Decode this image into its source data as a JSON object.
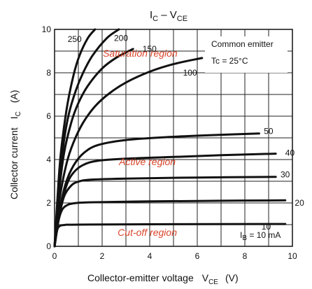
{
  "chart_data": {
    "type": "line",
    "title": "IC – VCE",
    "title_parts": {
      "main": "I",
      "sub1": "C",
      "dash": " – V",
      "sub2": "CE"
    },
    "xlabel": "Collector-emitter voltage",
    "xlabel_symbol": {
      "main": "V",
      "sub": "CE"
    },
    "xlabel_unit": "(V)",
    "ylabel": "Collector current",
    "ylabel_symbol": {
      "main": "I",
      "sub": "C"
    },
    "ylabel_unit": "(A)",
    "xlim": [
      0,
      10
    ],
    "ylim": [
      0,
      10
    ],
    "xticks": [
      0,
      2,
      4,
      6,
      8,
      10
    ],
    "yticks": [
      0,
      2,
      4,
      6,
      8,
      10
    ],
    "grid": true,
    "annotations": {
      "condition_line1": "Common emitter",
      "condition_line2": "Tc = 25°C",
      "ib_prefix": "I",
      "ib_sub": "B",
      "ib_suffix": " = 10 mA"
    },
    "regions": [
      {
        "label": "Saturation region",
        "x": 3.6,
        "y": 8.9
      },
      {
        "label": "Active region",
        "x": 3.9,
        "y": 3.9
      },
      {
        "label": "Cut-off region",
        "x": 3.9,
        "y": 0.65
      }
    ],
    "region_color": "#d9452b",
    "series": [
      {
        "name": "10",
        "label_pos": [
          8.7,
          0.9
        ],
        "points": [
          [
            0,
            0
          ],
          [
            0.1,
            0.7
          ],
          [
            0.2,
            0.92
          ],
          [
            0.4,
            0.98
          ],
          [
            1,
            1.0
          ],
          [
            5,
            1.02
          ],
          [
            9.7,
            1.03
          ]
        ]
      },
      {
        "name": "20",
        "label_pos": [
          10.1,
          2.0
        ],
        "points": [
          [
            0,
            0
          ],
          [
            0.15,
            1.1
          ],
          [
            0.3,
            1.65
          ],
          [
            0.5,
            1.88
          ],
          [
            0.8,
            1.98
          ],
          [
            1.5,
            2.03
          ],
          [
            4,
            2.07
          ],
          [
            7,
            2.1
          ],
          [
            9.7,
            2.12
          ]
        ]
      },
      {
        "name": "30",
        "label_pos": [
          9.5,
          3.3
        ],
        "points": [
          [
            0,
            0
          ],
          [
            0.2,
            1.4
          ],
          [
            0.4,
            2.3
          ],
          [
            0.7,
            2.8
          ],
          [
            1.0,
            2.98
          ],
          [
            1.5,
            3.07
          ],
          [
            3,
            3.12
          ],
          [
            6,
            3.17
          ],
          [
            9.3,
            3.2
          ]
        ]
      },
      {
        "name": "40",
        "label_pos": [
          9.7,
          4.3
        ],
        "points": [
          [
            0,
            0
          ],
          [
            0.2,
            1.5
          ],
          [
            0.5,
            2.8
          ],
          [
            0.8,
            3.4
          ],
          [
            1.2,
            3.75
          ],
          [
            1.8,
            3.94
          ],
          [
            3,
            4.04
          ],
          [
            5,
            4.12
          ],
          [
            7,
            4.2
          ],
          [
            9.3,
            4.27
          ]
        ]
      },
      {
        "name": "50",
        "label_pos": [
          8.8,
          5.3
        ],
        "points": [
          [
            0,
            0
          ],
          [
            0.2,
            1.6
          ],
          [
            0.5,
            3.0
          ],
          [
            0.9,
            3.9
          ],
          [
            1.4,
            4.45
          ],
          [
            2,
            4.72
          ],
          [
            3,
            4.9
          ],
          [
            4.5,
            5.02
          ],
          [
            6.5,
            5.12
          ],
          [
            8.6,
            5.2
          ]
        ]
      },
      {
        "name": "100",
        "label_pos": [
          5.4,
          8.0
        ],
        "points": [
          [
            0,
            0
          ],
          [
            0.2,
            2.1
          ],
          [
            0.5,
            3.8
          ],
          [
            0.8,
            4.8
          ],
          [
            1.2,
            5.7
          ],
          [
            1.7,
            6.45
          ],
          [
            2.3,
            7.05
          ],
          [
            3,
            7.55
          ],
          [
            4,
            8.05
          ],
          [
            5,
            8.4
          ],
          [
            6.2,
            8.68
          ]
        ]
      },
      {
        "name": "150",
        "label_pos": [
          3.7,
          9.1
        ],
        "points": [
          [
            0,
            0
          ],
          [
            0.2,
            2.6
          ],
          [
            0.4,
            4.3
          ],
          [
            0.7,
            5.7
          ],
          [
            1.0,
            6.6
          ],
          [
            1.4,
            7.4
          ],
          [
            2,
            8.2
          ],
          [
            2.6,
            8.7
          ],
          [
            3.3,
            9.1
          ]
        ]
      },
      {
        "name": "200",
        "label_pos": [
          2.5,
          9.6
        ],
        "points": [
          [
            0,
            0
          ],
          [
            0.2,
            3.0
          ],
          [
            0.4,
            4.9
          ],
          [
            0.6,
            6.1
          ],
          [
            0.9,
            7.2
          ],
          [
            1.2,
            8.0
          ],
          [
            1.6,
            8.8
          ],
          [
            2.2,
            9.6
          ],
          [
            2.7,
            10.0
          ]
        ]
      },
      {
        "name": "250",
        "label_pos": [
          0.55,
          9.55
        ],
        "points": [
          [
            0,
            0
          ],
          [
            0.2,
            3.5
          ],
          [
            0.35,
            5.1
          ],
          [
            0.55,
            6.6
          ],
          [
            0.8,
            7.9
          ],
          [
            1.05,
            8.8
          ],
          [
            1.4,
            9.6
          ],
          [
            1.7,
            10.0
          ]
        ]
      }
    ]
  }
}
